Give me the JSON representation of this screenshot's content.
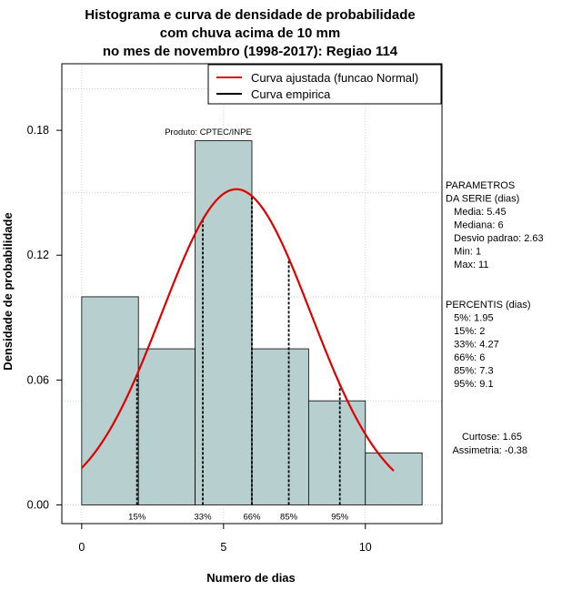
{
  "chart_data": {
    "type": "bar",
    "title": [
      "Histograma e curva de densidade de probabilidade",
      "com chuva acima de 10 mm",
      "no mes de novembro (1998-2017): Regiao 114"
    ],
    "xlabel": "Numero de dias",
    "ylabel": "Densidade de probabilidade",
    "xlim": [
      -0.7,
      12.7
    ],
    "ylim": [
      -0.009,
      0.212
    ],
    "xticks": [
      0,
      5,
      10
    ],
    "yticks": [
      0.0,
      0.06,
      0.12,
      0.18
    ],
    "ytick_labels": [
      "0.00",
      "0.06",
      "0.12",
      "0.18"
    ],
    "grid": true,
    "bins": [
      {
        "x0": 0,
        "x1": 2,
        "density": 0.1
      },
      {
        "x0": 2,
        "x1": 4,
        "density": 0.075
      },
      {
        "x0": 4,
        "x1": 6,
        "density": 0.175
      },
      {
        "x0": 6,
        "x1": 8,
        "density": 0.075
      },
      {
        "x0": 8,
        "x1": 10,
        "density": 0.05
      },
      {
        "x0": 10,
        "x1": 12,
        "density": 0.025
      }
    ],
    "bar_color": "#b7cfcf",
    "curve": {
      "name": "Curva ajustada (funcao Normal)",
      "color": "#e00000",
      "mean": 5.45,
      "sd": 2.63,
      "x_range": [
        0,
        11
      ]
    },
    "empirical_name": "Curva empirica",
    "legend_position": "top-right",
    "percentile_lines": [
      {
        "x": 1.95,
        "label": "15%"
      },
      {
        "x": 4.27,
        "label": "33%"
      },
      {
        "x": 6,
        "label": "66%"
      },
      {
        "x": 7.3,
        "label": "85%"
      },
      {
        "x": 9.1,
        "label": "95%"
      }
    ],
    "annotation": "Produto: CPTEC/INPE",
    "side_panel": {
      "parametros": [
        "PARAMETROS",
        "DA SERIE (dias)",
        "   Media: 5.45",
        "   Mediana: 6",
        "   Desvio padrao: 2.63",
        "   Min: 1",
        "   Max: 11"
      ],
      "percentis": [
        "PERCENTIS (dias)",
        "   5%: 1.95",
        "   15%: 2",
        "   33%: 4.27",
        "   66%: 6",
        "   85%: 7.3",
        "   95%: 9.1"
      ],
      "curtose": "Curtose: 1.65",
      "assimetria": "Assimetria: -0.38"
    }
  }
}
